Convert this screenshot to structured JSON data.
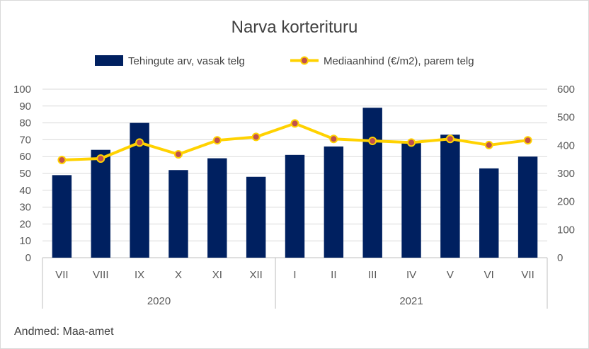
{
  "chart_data": {
    "type": "bar+line",
    "title": "Narva korterituru",
    "categories": [
      "VII",
      "VIII",
      "IX",
      "X",
      "XI",
      "XII",
      "I",
      "II",
      "III",
      "IV",
      "V",
      "VI",
      "VII"
    ],
    "groups": [
      {
        "label": "2020",
        "span": 6
      },
      {
        "label": "2021",
        "span": 7
      }
    ],
    "series": [
      {
        "name": "Tehingute arv, vasak telg",
        "type": "bar",
        "axis": "left",
        "color": "#002060",
        "values": [
          49,
          64,
          80,
          52,
          59,
          48,
          61,
          66,
          89,
          68,
          73,
          53,
          60
        ]
      },
      {
        "name": "Mediaanhind (€/m2), parem telg",
        "type": "line",
        "axis": "right",
        "color": "#FFD200",
        "marker_color": "#C0504D",
        "values": [
          348,
          353,
          410,
          368,
          418,
          430,
          478,
          423,
          416,
          410,
          423,
          401,
          418
        ]
      }
    ],
    "y_left": {
      "min": 0,
      "max": 100,
      "step": 10
    },
    "y_right": {
      "min": 0,
      "max": 600,
      "step": 100
    },
    "legend": "top",
    "grid": true,
    "source": "Andmed: Maa-amet"
  }
}
